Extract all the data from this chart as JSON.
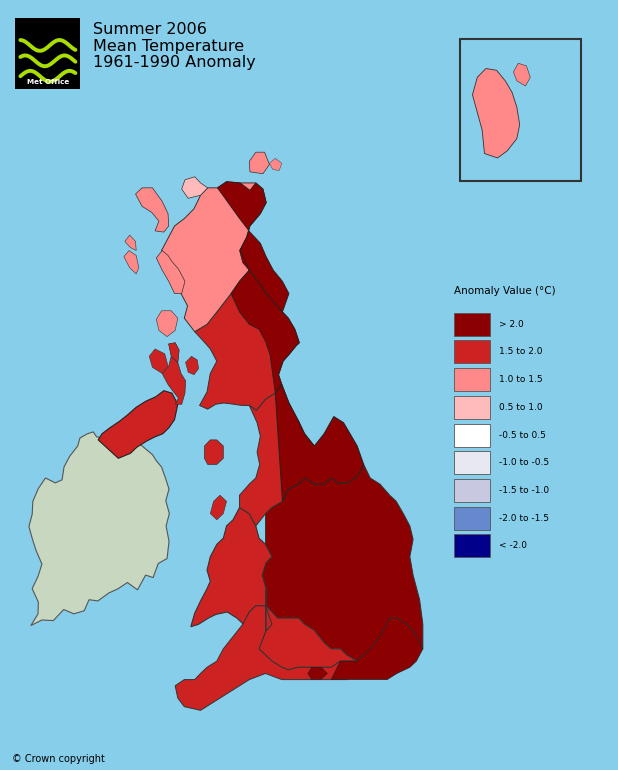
{
  "title_line1": "Summer 2006",
  "title_line2": "Mean Temperature",
  "title_line3": "1961-1990 Anomaly",
  "legend_title": "Anomaly Value (°C)",
  "legend_labels": [
    "> 2.0",
    "1.5 to 2.0",
    "1.0 to 1.5",
    "0.5 to 1.0",
    "-0.5 to 0.5",
    "-1.0 to -0.5",
    "-1.5 to -1.0",
    "-2.0 to -1.5",
    "< -2.0"
  ],
  "legend_colors": [
    "#8B0000",
    "#CC2222",
    "#FF8888",
    "#FFBBBB",
    "#FFFFFF",
    "#E8E8F0",
    "#C8C8E0",
    "#6688CC",
    "#00008B"
  ],
  "background_color": "#87CEEB",
  "copyright_text": "© Crown copyright",
  "ireland_color": "#C8D8C0",
  "inset_border_color": "#333333",
  "map_lon_min": -11.0,
  "map_lon_max": 2.5,
  "map_lat_min": 49.3,
  "map_lat_max": 61.2
}
